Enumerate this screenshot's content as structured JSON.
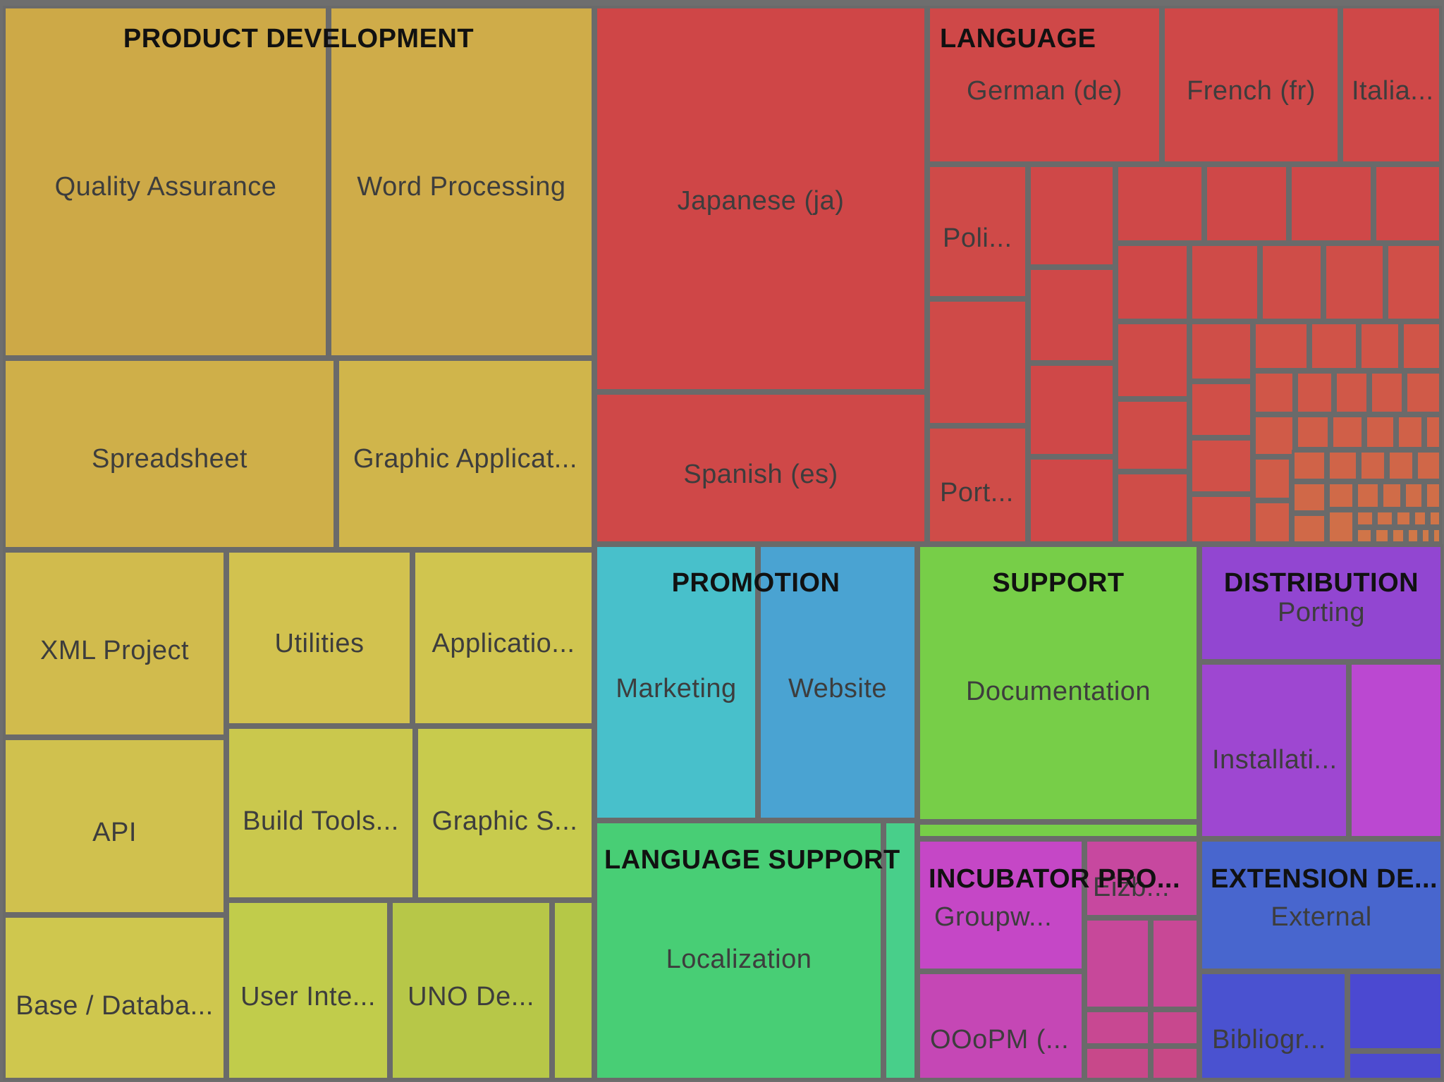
{
  "chart_data": {
    "type": "treemap",
    "groups": [
      {
        "name": "PRODUCT DEVELOPMENT",
        "color": "#cdab47",
        "items": [
          {
            "name": "Quality Assurance",
            "color": "#cda947"
          },
          {
            "name": "Word Processing",
            "color": "#cfac49"
          },
          {
            "name": "Spreadsheet",
            "color": "#cfaf49"
          },
          {
            "name": "Graphic Applicat...",
            "color": "#d0b54b"
          },
          {
            "name": "XML Project",
            "color": "#d1bb4d"
          },
          {
            "name": "Utilities",
            "color": "#d2c24f"
          },
          {
            "name": "Applicatio...",
            "color": "#d0c54f"
          },
          {
            "name": "API",
            "color": "#d0c14e"
          },
          {
            "name": "Build Tools...",
            "color": "#cac84d"
          },
          {
            "name": "Graphic S...",
            "color": "#c8cb4d"
          },
          {
            "name": "Base / Databa...",
            "color": "#cfc74e"
          },
          {
            "name": "User Inte...",
            "color": "#c1cc4b"
          },
          {
            "name": "UNO De...",
            "color": "#b7c748"
          },
          {
            "name": "",
            "color": "#b5c847"
          }
        ]
      },
      {
        "name": "LANGUAGE",
        "color": "#cf4847",
        "items": [
          {
            "name": "Japanese (ja)",
            "color": "#cf4647"
          },
          {
            "name": "Spanish (es)",
            "color": "#cf4848"
          },
          {
            "name": "German (de)",
            "color": "#cf4848"
          },
          {
            "name": "French (fr)",
            "color": "#cf4848"
          },
          {
            "name": "Italia...",
            "color": "#cf4848"
          },
          {
            "name": "Poli...",
            "color": "#cf4a48"
          },
          {
            "name": "Port...",
            "color": "#cf4c48"
          }
        ]
      },
      {
        "name": "PROMOTION",
        "color": "#48bfcc",
        "items": [
          {
            "name": "Marketing",
            "color": "#48c0cb"
          },
          {
            "name": "Website",
            "color": "#4aa3d2"
          }
        ]
      },
      {
        "name": "SUPPORT",
        "color": "#77ce48",
        "items": [
          {
            "name": "Documentation",
            "color": "#77ce48"
          }
        ]
      },
      {
        "name": "DISTRIBUTION",
        "color": "#9245d0",
        "items": [
          {
            "name": "Porting",
            "color": "#9246d1"
          },
          {
            "name": "Installati...",
            "color": "#9e47d1"
          },
          {
            "name": "",
            "color": "#bb48d1"
          }
        ]
      },
      {
        "name": "LANGUAGE SUPPORT",
        "color": "#48ce75",
        "items": [
          {
            "name": "Localization",
            "color": "#48ce75"
          },
          {
            "name": "",
            "color": "#48cf8a"
          }
        ]
      },
      {
        "name": "INCUBATOR PRO...",
        "color": "#c749c5",
        "items": [
          {
            "name": "Groupw...",
            "color": "#c547c6"
          },
          {
            "name": "OOoPM (...",
            "color": "#c547b5"
          },
          {
            "name": "Eizb...",
            "color": "#c7489f"
          }
        ]
      },
      {
        "name": "EXTENSION DE...",
        "color": "#4864cf",
        "items": [
          {
            "name": "External",
            "color": "#4866ce"
          },
          {
            "name": "Bibliogr...",
            "color": "#4a52d0"
          },
          {
            "name": "",
            "color": "#4b49d1"
          }
        ]
      }
    ]
  }
}
